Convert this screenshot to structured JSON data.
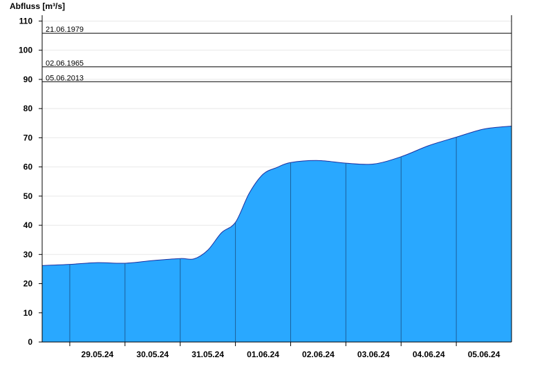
{
  "chart_data": {
    "type": "area",
    "ylabel": "Abfluss [m³/s]",
    "ylim": [
      0,
      112
    ],
    "yticks": [
      0,
      10,
      20,
      30,
      40,
      50,
      60,
      70,
      80,
      90,
      100,
      110
    ],
    "grid": true,
    "x_day_labels": [
      "29.05.24",
      "30.05.24",
      "31.05.24",
      "01.06.24",
      "02.06.24",
      "03.06.24",
      "04.06.24",
      "05.06.24"
    ],
    "fill_color": "#29a8ff",
    "line_color": "#1a2fa0",
    "x": [
      "28.05.24 12:00",
      "29.05.24 00:00",
      "29.05.24 12:00",
      "30.05.24 00:00",
      "30.05.24 12:00",
      "31.05.24 00:00",
      "31.05.24 06:00",
      "31.05.24 12:00",
      "31.05.24 18:00",
      "01.06.24 00:00",
      "01.06.24 06:00",
      "01.06.24 12:00",
      "01.06.24 18:00",
      "02.06.24 00:00",
      "02.06.24 12:00",
      "03.06.24 00:00",
      "03.06.24 12:00",
      "04.06.24 00:00",
      "04.06.24 12:00",
      "05.06.24 00:00",
      "05.06.24 12:00",
      "05.06.24 24:00"
    ],
    "values": [
      26.2,
      26.6,
      27.2,
      27.0,
      27.9,
      28.6,
      28.5,
      31.5,
      37.5,
      41.0,
      51.0,
      57.5,
      59.8,
      61.5,
      62.2,
      61.3,
      61.0,
      63.5,
      67.3,
      70.2,
      73.0,
      74.0
    ],
    "reference_lines": [
      {
        "label": "21.06.1979",
        "value": 105.8
      },
      {
        "label": "02.06.1965",
        "value": 94.3
      },
      {
        "label": "05.06.2013",
        "value": 89.2
      }
    ]
  }
}
